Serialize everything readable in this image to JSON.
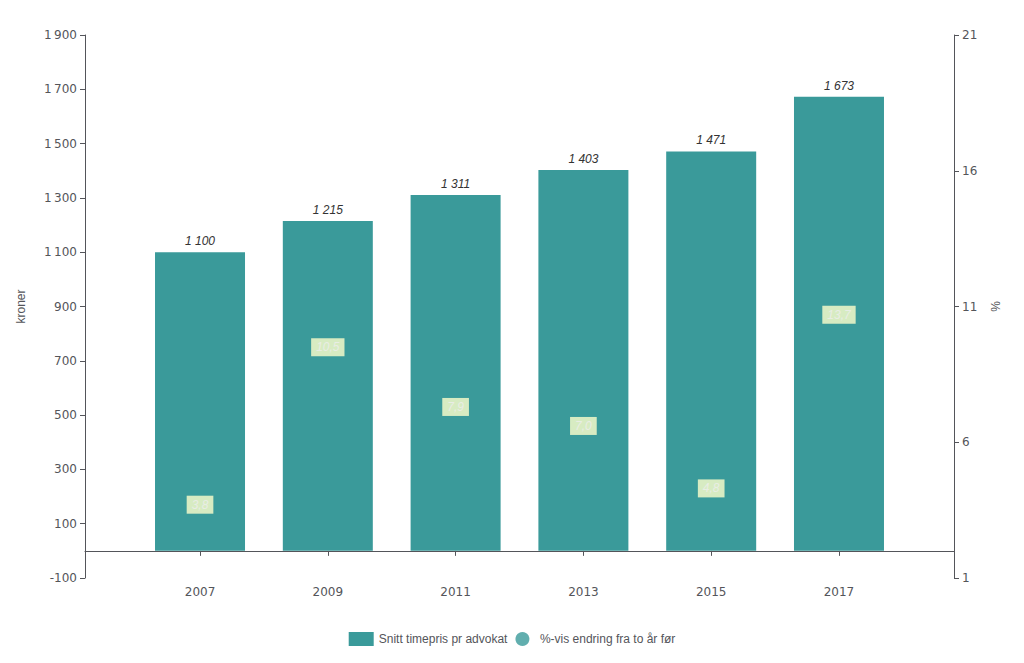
{
  "chart_data": {
    "type": "bar",
    "x": [
      2007,
      2009,
      2011,
      2013,
      2015,
      2017
    ],
    "xlim": [
      2005.2,
      2018.8
    ],
    "xticks": [
      2007,
      2009,
      2011,
      2013,
      2015,
      2017
    ],
    "ylabel": "kroner",
    "y2label": "%",
    "ylim": [
      -100,
      1900
    ],
    "yticks": [
      -100,
      100,
      300,
      500,
      700,
      900,
      {
        "value": 1100,
        "label": "1 100"
      },
      {
        "value": 1300,
        "label": "1 300"
      },
      {
        "value": 1500,
        "label": "1 500"
      },
      {
        "value": 1700,
        "label": "1 700"
      },
      {
        "value": 1900,
        "label": "1 900"
      }
    ],
    "y2lim": [
      1,
      21
    ],
    "y2ticks": [
      1,
      6,
      11,
      16,
      21
    ],
    "grid": false,
    "legend": "bottom",
    "series": [
      {
        "name": "Snitt timepris pr advokat",
        "type": "bar",
        "color": "#3a9a9a",
        "values": [
          1100,
          1215,
          1311,
          1403,
          1471,
          1673
        ],
        "value_labels": [
          "1 100",
          "1 215",
          "1 311",
          "1 403",
          "1 471",
          "1 673"
        ],
        "data_labels": true
      },
      {
        "name": "%-vis endring fra to år før",
        "type": "scatter",
        "marker": "circle",
        "color": "#3a9a9a",
        "values": [
          null,
          null,
          null,
          null,
          null,
          null
        ]
      }
    ],
    "annotations": [
      {
        "x": 2007,
        "y": 170,
        "text": "3,8",
        "color": "#ffffcc"
      },
      {
        "x": 2009,
        "y": 750,
        "text": "10,5",
        "color": "#ffffcc"
      },
      {
        "x": 2011,
        "y": 530,
        "text": "7,9",
        "color": "#ffffcc"
      },
      {
        "x": 2013,
        "y": 460,
        "text": "7,0",
        "color": "#ffffcc"
      },
      {
        "x": 2015,
        "y": 230,
        "text": "4,8",
        "color": "#ffffcc"
      },
      {
        "x": 2017,
        "y": 870,
        "text": "13,7",
        "color": "#ffffcc"
      }
    ]
  }
}
